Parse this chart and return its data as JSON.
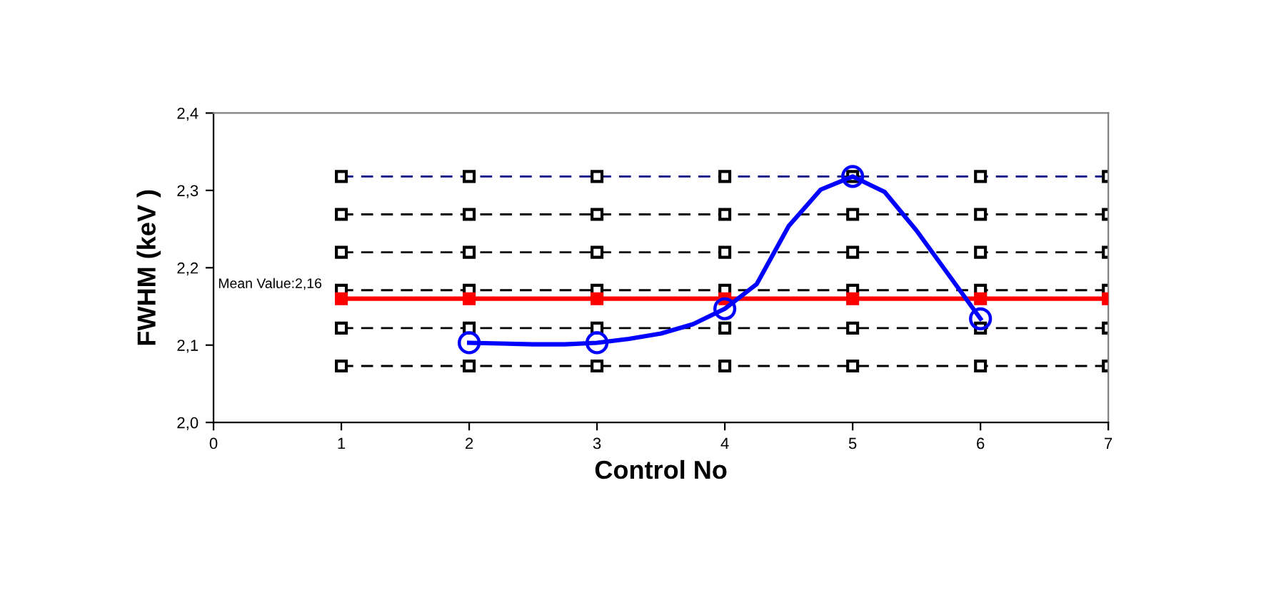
{
  "chart_data": {
    "type": "line",
    "xlabel": "Control No",
    "ylabel": "FWHM (keV )",
    "xlim": [
      0,
      7
    ],
    "xticks": [
      0,
      1,
      2,
      3,
      4,
      5,
      6,
      7
    ],
    "ylim": [
      2.0,
      2.4
    ],
    "yticks": [
      {
        "value": 2.0,
        "label": "2,0"
      },
      {
        "value": 2.1,
        "label": "2,1"
      },
      {
        "value": 2.2,
        "label": "2,2"
      },
      {
        "value": 2.3,
        "label": "2,3"
      },
      {
        "value": 2.4,
        "label": "2,4"
      }
    ],
    "grid": false,
    "legend": false,
    "annotations": [
      "Mean Value:2,16"
    ],
    "series": [
      {
        "color": "#000080",
        "line_style": "dashed",
        "marker": "square",
        "x": [
          1,
          2,
          3,
          4,
          5,
          6,
          7
        ],
        "values": [
          2.318,
          2.318,
          2.318,
          2.318,
          2.318,
          2.318,
          2.318
        ]
      },
      {
        "color": "#000000",
        "line_style": "dashed",
        "marker": "square",
        "x": [
          1,
          2,
          3,
          4,
          5,
          6,
          7
        ],
        "values": [
          2.269,
          2.269,
          2.269,
          2.269,
          2.269,
          2.269,
          2.269
        ]
      },
      {
        "color": "#000000",
        "line_style": "dashed",
        "marker": "square",
        "x": [
          1,
          2,
          3,
          4,
          5,
          6,
          7
        ],
        "values": [
          2.22,
          2.22,
          2.22,
          2.22,
          2.22,
          2.22,
          2.22
        ]
      },
      {
        "color": "#000000",
        "line_style": "dashed",
        "marker": "square",
        "x": [
          1,
          2,
          3,
          4,
          5,
          6,
          7
        ],
        "values": [
          2.171,
          2.171,
          2.171,
          2.171,
          2.171,
          2.171,
          2.171
        ]
      },
      {
        "color": "#000000",
        "line_style": "dashed",
        "marker": "square",
        "x": [
          1,
          2,
          3,
          4,
          5,
          6,
          7
        ],
        "values": [
          2.122,
          2.122,
          2.122,
          2.122,
          2.122,
          2.122,
          2.122
        ]
      },
      {
        "color": "#000000",
        "line_style": "dashed",
        "marker": "square",
        "x": [
          1,
          2,
          3,
          4,
          5,
          6,
          7
        ],
        "values": [
          2.073,
          2.073,
          2.073,
          2.073,
          2.073,
          2.073,
          2.073
        ]
      },
      {
        "color": "#ff0000",
        "line_style": "solid",
        "marker": "square",
        "x": [
          1,
          2,
          3,
          4,
          5,
          6,
          7
        ],
        "values": [
          2.16,
          2.16,
          2.16,
          2.16,
          2.16,
          2.16,
          2.16
        ]
      },
      {
        "color": "#0000ff",
        "line_style": "solid",
        "marker": "none",
        "x": [
          2,
          2.25,
          2.5,
          2.75,
          3,
          3.25,
          3.5,
          3.75,
          4,
          4.25,
          4.5,
          4.75,
          5,
          5.25,
          5.5,
          5.75,
          6
        ],
        "values": [
          2.103,
          2.102,
          2.101,
          2.101,
          2.103,
          2.108,
          2.115,
          2.127,
          2.147,
          2.179,
          2.254,
          2.301,
          2.318,
          2.298,
          2.248,
          2.191,
          2.134
        ]
      },
      {
        "type": "scatter",
        "color": "#0000ff",
        "marker": "circle",
        "x": [
          2,
          3,
          4,
          5,
          6
        ],
        "values": [
          2.103,
          2.103,
          2.147,
          2.318,
          2.134
        ]
      }
    ]
  }
}
